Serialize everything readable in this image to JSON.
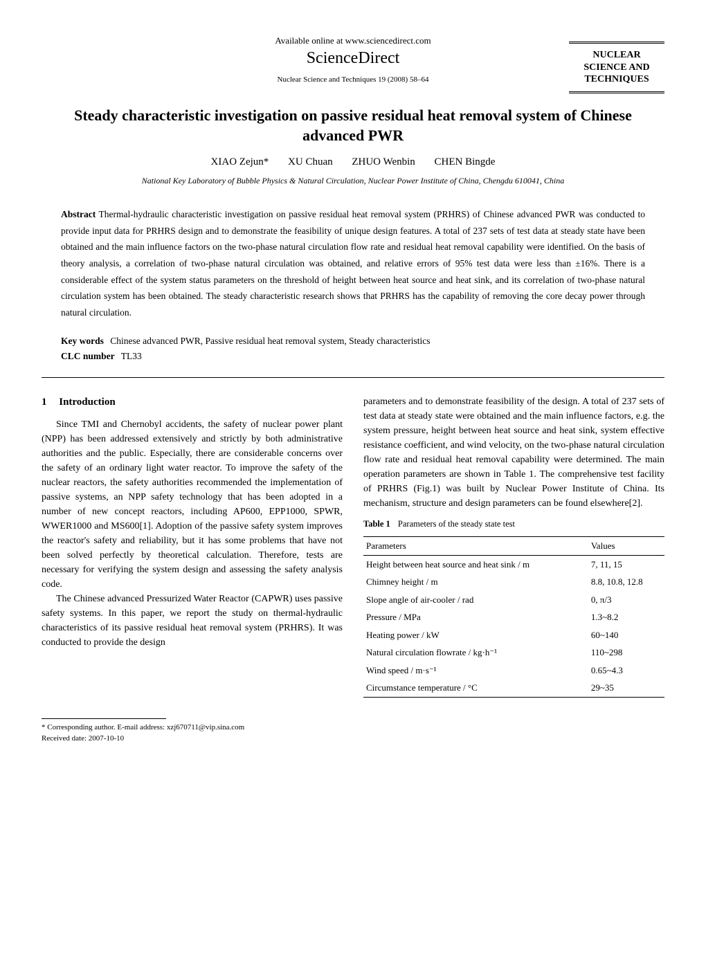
{
  "header": {
    "available_text": "Available online at www.sciencedirect.com",
    "brand": "ScienceDirect",
    "journal_ref": "Nuclear Science and Techniques 19 (2008) 58–64",
    "journal_box": "NUCLEAR SCIENCE AND TECHNIQUES"
  },
  "title": "Steady characteristic investigation on passive residual heat removal system of Chinese advanced PWR",
  "authors": [
    "XIAO Zejun*",
    "XU Chuan",
    "ZHUO Wenbin",
    "CHEN Bingde"
  ],
  "affiliation": "National Key Laboratory of Bubble Physics & Natural Circulation, Nuclear Power Institute of China, Chengdu 610041, China",
  "abstract": {
    "label": "Abstract",
    "text": "Thermal-hydraulic characteristic investigation on passive residual heat removal system (PRHRS) of Chinese advanced PWR was conducted to provide input data for PRHRS design and to demonstrate the feasibility of unique design features. A total of 237 sets of test data at steady state have been obtained and the main influence factors on the two-phase natural circulation flow rate and residual heat removal capability were identified. On the basis of theory analysis, a correlation of two-phase natural circulation was obtained, and relative errors of 95% test data were less than ±16%. There is a considerable effect of the system status parameters on the threshold of height between heat source and heat sink, and its correlation of two-phase natural circulation system has been obtained. The steady characteristic research shows that PRHRS has the capability of removing the core decay power through natural circulation."
  },
  "keywords": {
    "label": "Key words",
    "text": "Chinese advanced PWR, Passive residual heat removal system, Steady characteristics"
  },
  "clc": {
    "label": "CLC number",
    "text": "TL33"
  },
  "section1": {
    "number": "1",
    "heading": "Introduction",
    "p1": "Since TMI and Chernobyl accidents, the safety of nuclear power plant (NPP) has been addressed extensively and strictly by both administrative authorities and the public. Especially, there are considerable concerns over the safety of an ordinary light water reactor. To improve the safety of the nuclear reactors, the safety authorities recommended the implementation of passive systems, an NPP safety technology that has been adopted in a number of new concept reactors, including AP600, EPP1000, SPWR, WWER1000 and MS600[1]. Adoption of the passive safety system improves the reactor's safety and reliability, but it has some problems that have not been solved perfectly by theoretical calculation. Therefore, tests are necessary for verifying the system design and assessing the safety analysis code.",
    "p2": "The Chinese advanced Pressurized Water Reactor (CAPWR) uses passive safety systems. In this paper, we report the study on thermal-hydraulic characteristics of its passive residual heat removal system (PRHRS). It was conducted to provide the design",
    "p3": "parameters and to demonstrate feasibility of the design. A total of 237 sets of test data at steady state were obtained and the main influence factors, e.g. the system pressure, height between heat source and heat sink, system effective resistance coefficient, and wind velocity, on the two-phase natural circulation flow rate and residual heat removal capability were determined. The main operation parameters are shown in Table 1. The comprehensive test facility of PRHRS (Fig.1) was built by Nuclear Power Institute of China. Its mechanism, structure and design parameters can be found elsewhere[2]."
  },
  "table1": {
    "label": "Table 1",
    "caption": "Parameters of the steady state test",
    "headers": [
      "Parameters",
      "Values"
    ],
    "rows": [
      [
        "Height between heat source and heat sink / m",
        "7, 11, 15"
      ],
      [
        "Chimney height / m",
        "8.8, 10.8, 12.8"
      ],
      [
        "Slope angle of air-cooler / rad",
        "0, π/3"
      ],
      [
        "Pressure / MPa",
        "1.3~8.2"
      ],
      [
        "Heating power / kW",
        "60~140"
      ],
      [
        "Natural circulation flowrate / kg·h⁻¹",
        "110~298"
      ],
      [
        "Wind speed / m·s⁻¹",
        "0.65~4.3"
      ],
      [
        "Circumstance temperature / °C",
        "29~35"
      ]
    ]
  },
  "footnote": {
    "corresponding": "* Corresponding author. E-mail address: xzj670711@vip.sina.com",
    "received": "Received date: 2007-10-10"
  }
}
